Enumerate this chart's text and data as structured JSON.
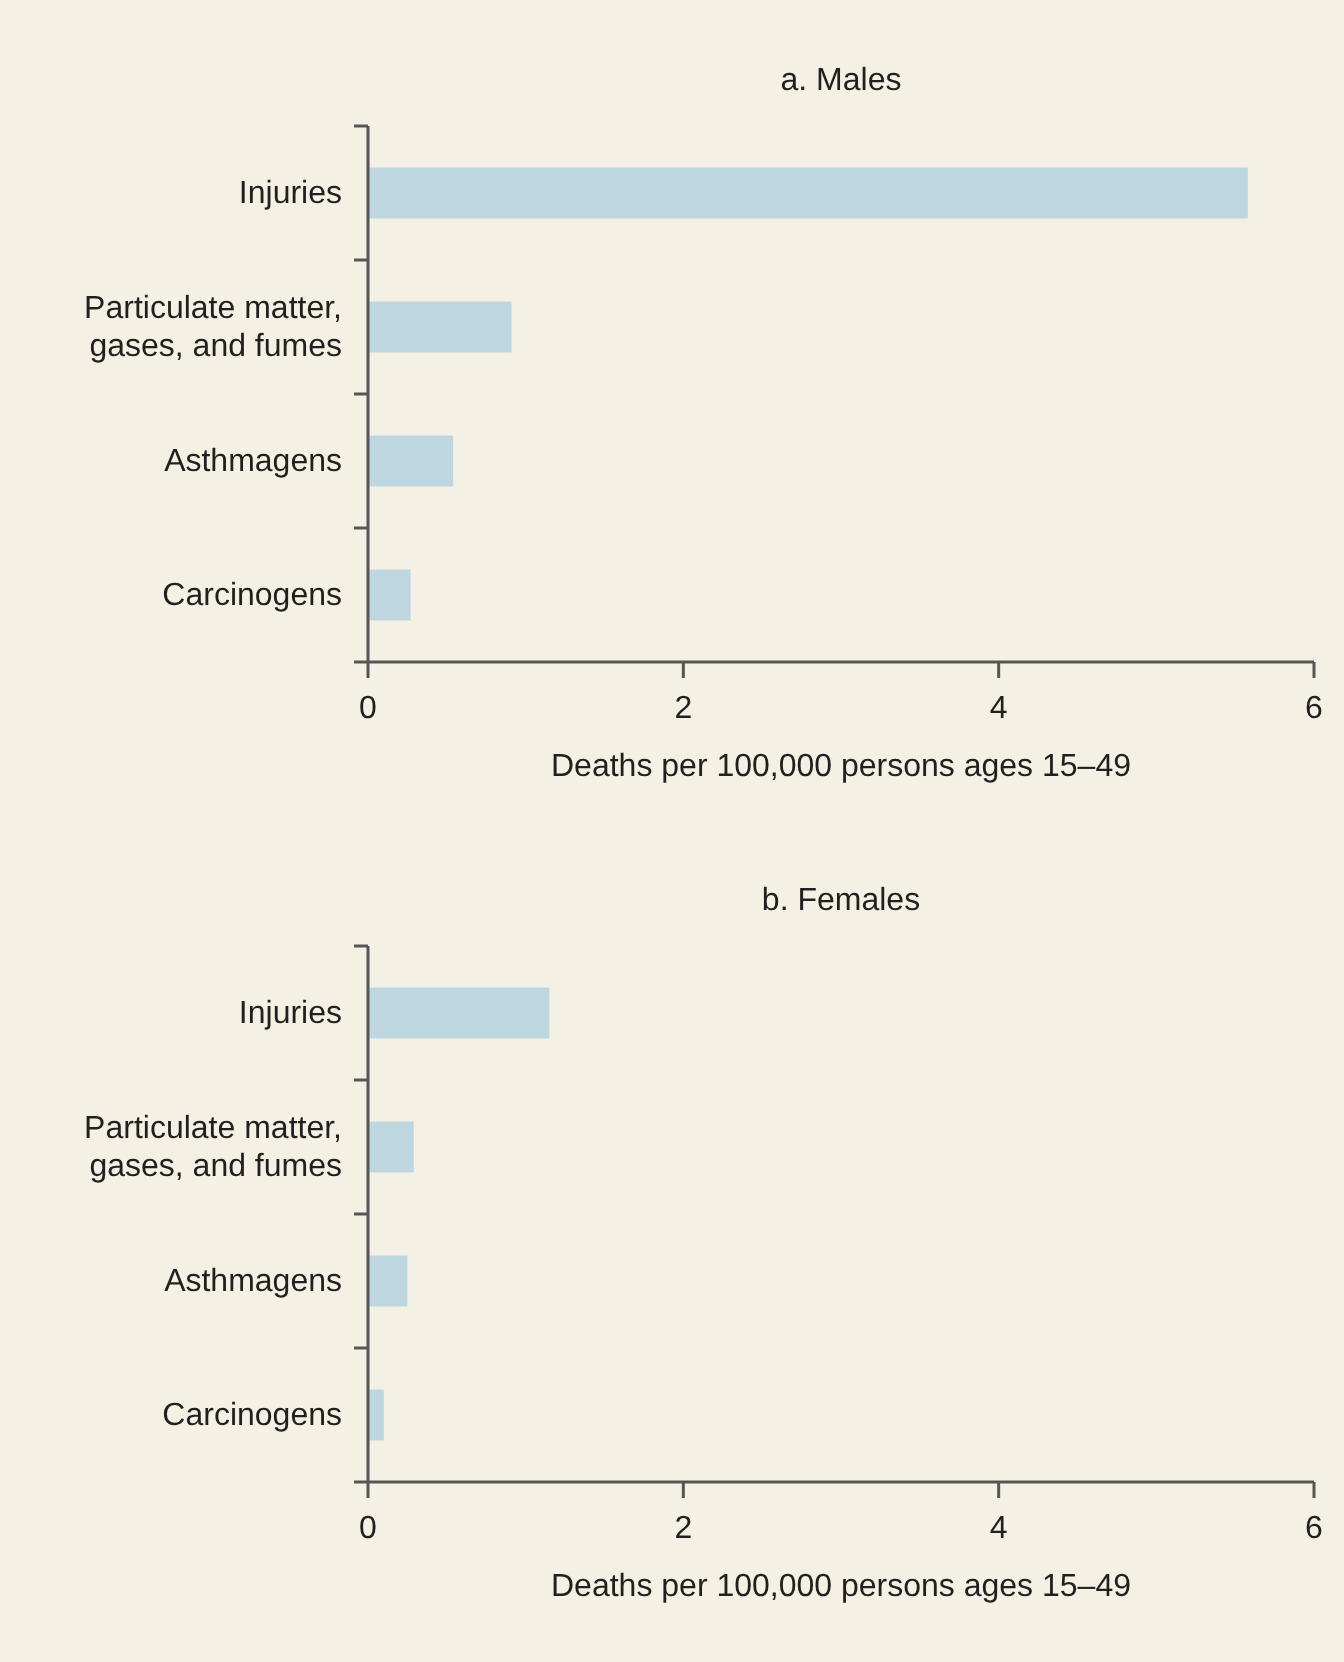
{
  "chart_data": [
    {
      "type": "bar",
      "orientation": "horizontal",
      "title": "a. Males",
      "xlabel": "Deaths per 100,000 persons ages 15–49",
      "categories": [
        "Injuries",
        "Particulate matter, gases, and fumes",
        "Asthmagens",
        "Carcinogens"
      ],
      "values": [
        5.58,
        0.91,
        0.54,
        0.27
      ],
      "color": "#bdd6e0",
      "xlim": [
        0,
        6
      ],
      "xticks": [
        0,
        2,
        4,
        6
      ],
      "grid": false
    },
    {
      "type": "bar",
      "orientation": "horizontal",
      "title": "b. Females",
      "xlabel": "Deaths per 100,000 persons ages 15–49",
      "categories": [
        "Injuries",
        "Particulate matter, gases, and fumes",
        "Asthmagens",
        "Carcinogens"
      ],
      "values": [
        1.15,
        0.29,
        0.25,
        0.1
      ],
      "color": "#bdd6e0",
      "xlim": [
        0,
        6
      ],
      "xticks": [
        0,
        2,
        4,
        6
      ],
      "grid": false
    }
  ]
}
